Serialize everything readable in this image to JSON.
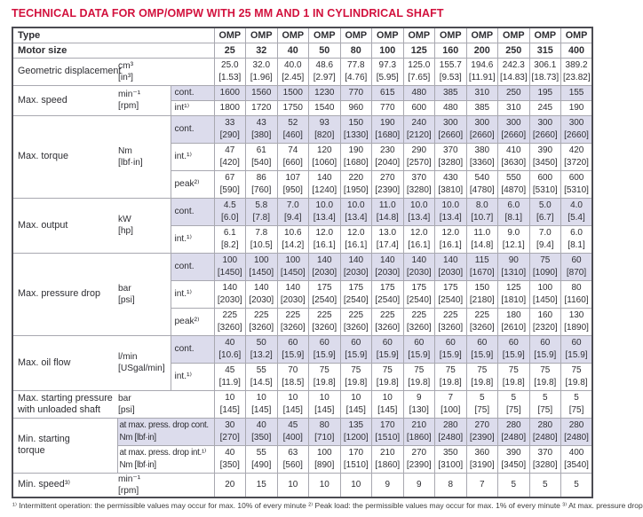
{
  "title": "TECHNICAL DATA FOR OMP/OMPW WITH 25 MM AND 1 IN CYLINDRICAL SHAFT",
  "colors": {
    "accent": "#d2113d",
    "shade": "#dcdcec",
    "border_dark": "#4b4b52",
    "border_light": "#a8a8b0"
  },
  "footnote": "¹⁾ Intermittent operation: the permissible values may occur for max. 10% of every minute   ²⁾ Peak load: the permissible values may occur for max. 1% of every minute   ³⁾ At max. pressure drop",
  "table": {
    "type_label": "Type",
    "type_row": [
      "OMP",
      "OMP",
      "OMP",
      "OMP",
      "OMP",
      "OMP",
      "OMP",
      "OMP",
      "OMP",
      "OMP",
      "OMP",
      "OMP"
    ],
    "motor_size_label": "Motor size",
    "motor_sizes": [
      "25",
      "32",
      "40",
      "50",
      "80",
      "100",
      "125",
      "160",
      "200",
      "250",
      "315",
      "400"
    ],
    "groups": [
      {
        "label": [
          "Geometric displacement"
        ],
        "unit": [
          "cm³",
          "[in³]"
        ],
        "has_cond": false,
        "subrows": [
          {
            "cond": null,
            "shaded": false,
            "lines": [
              [
                "25.0",
                "32.0",
                "40.0",
                "48.6",
                "77.8",
                "97.3",
                "125.0",
                "155.7",
                "194.6",
                "242.3",
                "306.1",
                "389.2"
              ],
              [
                "[1.53]",
                "[1.96]",
                "[2.45]",
                "[2.97]",
                "[4.76]",
                "[5.95]",
                "[7.65]",
                "[9.53]",
                "[11.91]",
                "[14.83]",
                "[18.73]",
                "[23.82]"
              ]
            ]
          }
        ]
      },
      {
        "label": [
          "Max. speed"
        ],
        "unit": [
          "min⁻¹",
          "[rpm]"
        ],
        "has_cond": true,
        "subrows": [
          {
            "cond": "cont.",
            "shaded": true,
            "lines": [
              [
                "1600",
                "1560",
                "1500",
                "1230",
                "770",
                "615",
                "480",
                "385",
                "310",
                "250",
                "195",
                "155"
              ]
            ]
          },
          {
            "cond": "int¹⁾",
            "shaded": false,
            "lines": [
              [
                "1800",
                "1720",
                "1750",
                "1540",
                "960",
                "770",
                "600",
                "480",
                "385",
                "310",
                "245",
                "190"
              ]
            ]
          }
        ]
      },
      {
        "label": [
          "Max. torque"
        ],
        "unit": [
          "Nm",
          "[lbf·in]"
        ],
        "has_cond": true,
        "subrows": [
          {
            "cond": "cont.",
            "shaded": true,
            "lines": [
              [
                "33",
                "43",
                "52",
                "93",
                "150",
                "190",
                "240",
                "300",
                "300",
                "300",
                "300",
                "300"
              ],
              [
                "[290]",
                "[380]",
                "[460]",
                "[820]",
                "[1330]",
                "[1680]",
                "[2120]",
                "[2660]",
                "[2660]",
                "[2660]",
                "[2660]",
                "[2660]"
              ]
            ]
          },
          {
            "cond": "int.¹⁾",
            "shaded": false,
            "lines": [
              [
                "47",
                "61",
                "74",
                "120",
                "190",
                "230",
                "290",
                "370",
                "380",
                "410",
                "390",
                "420"
              ],
              [
                "[420]",
                "[540]",
                "[660]",
                "[1060]",
                "[1680]",
                "[2040]",
                "[2570]",
                "[3280]",
                "[3360]",
                "[3630]",
                "[3450]",
                "[3720]"
              ]
            ]
          },
          {
            "cond": "peak²⁾",
            "shaded": false,
            "lines": [
              [
                "67",
                "86",
                "107",
                "140",
                "220",
                "270",
                "370",
                "430",
                "540",
                "550",
                "600",
                "600"
              ],
              [
                "[590]",
                "[760]",
                "[950]",
                "[1240]",
                "[1950]",
                "[2390]",
                "[3280]",
                "[3810]",
                "[4780]",
                "[4870]",
                "[5310]",
                "[5310]"
              ]
            ]
          }
        ]
      },
      {
        "label": [
          "Max. output"
        ],
        "unit": [
          "kW",
          "[hp]"
        ],
        "has_cond": true,
        "subrows": [
          {
            "cond": "cont.",
            "shaded": true,
            "lines": [
              [
                "4.5",
                "5.8",
                "7.0",
                "10.0",
                "10.0",
                "11.0",
                "10.0",
                "10.0",
                "8.0",
                "6.0",
                "5.0",
                "4.0"
              ],
              [
                "[6.0]",
                "[7.8]",
                "[9.4]",
                "[13.4]",
                "[13.4]",
                "[14.8]",
                "[13.4]",
                "[13.4]",
                "[10.7]",
                "[8.1]",
                "[6.7]",
                "[5.4]"
              ]
            ]
          },
          {
            "cond": "int.¹⁾",
            "shaded": false,
            "lines": [
              [
                "6.1",
                "7.8",
                "10.6",
                "12.0",
                "12.0",
                "13.0",
                "12.0",
                "12.0",
                "11.0",
                "9.0",
                "7.0",
                "6.0"
              ],
              [
                "[8.2]",
                "[10.5]",
                "[14.2]",
                "[16.1]",
                "[16.1]",
                "[17.4]",
                "[16.1]",
                "[16.1]",
                "[14.8]",
                "[12.1]",
                "[9.4]",
                "[8.1]"
              ]
            ]
          }
        ]
      },
      {
        "label": [
          "Max. pressure drop"
        ],
        "unit": [
          "bar",
          "[psi]"
        ],
        "has_cond": true,
        "subrows": [
          {
            "cond": "cont.",
            "shaded": true,
            "lines": [
              [
                "100",
                "100",
                "100",
                "140",
                "140",
                "140",
                "140",
                "140",
                "115",
                "90",
                "75",
                "60"
              ],
              [
                "[1450]",
                "[1450]",
                "[1450]",
                "[2030]",
                "[2030]",
                "[2030]",
                "[2030]",
                "[2030]",
                "[1670]",
                "[1310]",
                "[1090]",
                "[870]"
              ]
            ]
          },
          {
            "cond": "int.¹⁾",
            "shaded": false,
            "lines": [
              [
                "140",
                "140",
                "140",
                "175",
                "175",
                "175",
                "175",
                "175",
                "150",
                "125",
                "100",
                "80"
              ],
              [
                "[2030]",
                "[2030]",
                "[2030]",
                "[2540]",
                "[2540]",
                "[2540]",
                "[2540]",
                "[2540]",
                "[2180]",
                "[1810]",
                "[1450]",
                "[1160]"
              ]
            ]
          },
          {
            "cond": "peak²⁾",
            "shaded": false,
            "lines": [
              [
                "225",
                "225",
                "225",
                "225",
                "225",
                "225",
                "225",
                "225",
                "225",
                "180",
                "160",
                "130"
              ],
              [
                "[3260]",
                "[3260]",
                "[3260]",
                "[3260]",
                "[3260]",
                "[3260]",
                "[3260]",
                "[3260]",
                "[3260]",
                "[2610]",
                "[2320]",
                "[1890]"
              ]
            ]
          }
        ]
      },
      {
        "label": [
          "Max. oil flow"
        ],
        "unit": [
          "l/min",
          "[USgal/min]"
        ],
        "has_cond": true,
        "subrows": [
          {
            "cond": "cont.",
            "shaded": true,
            "lines": [
              [
                "40",
                "50",
                "60",
                "60",
                "60",
                "60",
                "60",
                "60",
                "60",
                "60",
                "60",
                "60"
              ],
              [
                "[10.6]",
                "[13.2]",
                "[15.9]",
                "[15.9]",
                "[15.9]",
                "[15.9]",
                "[15.9]",
                "[15.9]",
                "[15.9]",
                "[15.9]",
                "[15.9]",
                "[15.9]"
              ]
            ]
          },
          {
            "cond": "int.¹⁾",
            "shaded": false,
            "lines": [
              [
                "45",
                "55",
                "70",
                "75",
                "75",
                "75",
                "75",
                "75",
                "75",
                "75",
                "75",
                "75"
              ],
              [
                "[11.9]",
                "[14.5]",
                "[18.5]",
                "[19.8]",
                "[19.8]",
                "[19.8]",
                "[19.8]",
                "[19.8]",
                "[19.8]",
                "[19.8]",
                "[19.8]",
                "[19.8]"
              ]
            ]
          }
        ]
      },
      {
        "label": [
          "Max. starting pressure",
          "with unloaded shaft"
        ],
        "unit": [
          "bar",
          "[psi]"
        ],
        "has_cond": false,
        "subrows": [
          {
            "cond": null,
            "shaded": false,
            "lines": [
              [
                "10",
                "10",
                "10",
                "10",
                "10",
                "10",
                "9",
                "7",
                "5",
                "5",
                "5",
                "5"
              ],
              [
                "[145]",
                "[145]",
                "[145]",
                "[145]",
                "[145]",
                "[145]",
                "[130]",
                "[100]",
                "[75]",
                "[75]",
                "[75]",
                "[75]"
              ]
            ]
          }
        ]
      },
      {
        "label": [
          "Min. starting",
          "torque"
        ],
        "unit": null,
        "has_cond": true,
        "subrows": [
          {
            "cond": [
              "at max. press. drop cont.",
              "Nm [lbf·in]"
            ],
            "shaded": true,
            "lines": [
              [
                "30",
                "40",
                "45",
                "80",
                "135",
                "170",
                "210",
                "280",
                "270",
                "280",
                "280",
                "280"
              ],
              [
                "[270]",
                "[350]",
                "[400]",
                "[710]",
                "[1200]",
                "[1510]",
                "[1860]",
                "[2480]",
                "[2390]",
                "[2480]",
                "[2480]",
                "[2480]"
              ]
            ]
          },
          {
            "cond": [
              "at max. press. drop int.¹⁾",
              "Nm [lbf·in]"
            ],
            "shaded": false,
            "lines": [
              [
                "40",
                "55",
                "63",
                "100",
                "170",
                "210",
                "270",
                "350",
                "360",
                "390",
                "370",
                "400"
              ],
              [
                "[350]",
                "[490]",
                "[560]",
                "[890]",
                "[1510]",
                "[1860]",
                "[2390]",
                "[3100]",
                "[3190]",
                "[3450]",
                "[3280]",
                "[3540]"
              ]
            ]
          }
        ]
      },
      {
        "label": [
          "Min. speed³⁾"
        ],
        "unit": [
          "min⁻¹",
          "[rpm]"
        ],
        "has_cond": false,
        "subrows": [
          {
            "cond": null,
            "shaded": false,
            "tall": true,
            "lines": [
              [
                "20",
                "15",
                "10",
                "10",
                "10",
                "9",
                "9",
                "8",
                "7",
                "5",
                "5",
                "5"
              ]
            ]
          }
        ]
      }
    ]
  }
}
